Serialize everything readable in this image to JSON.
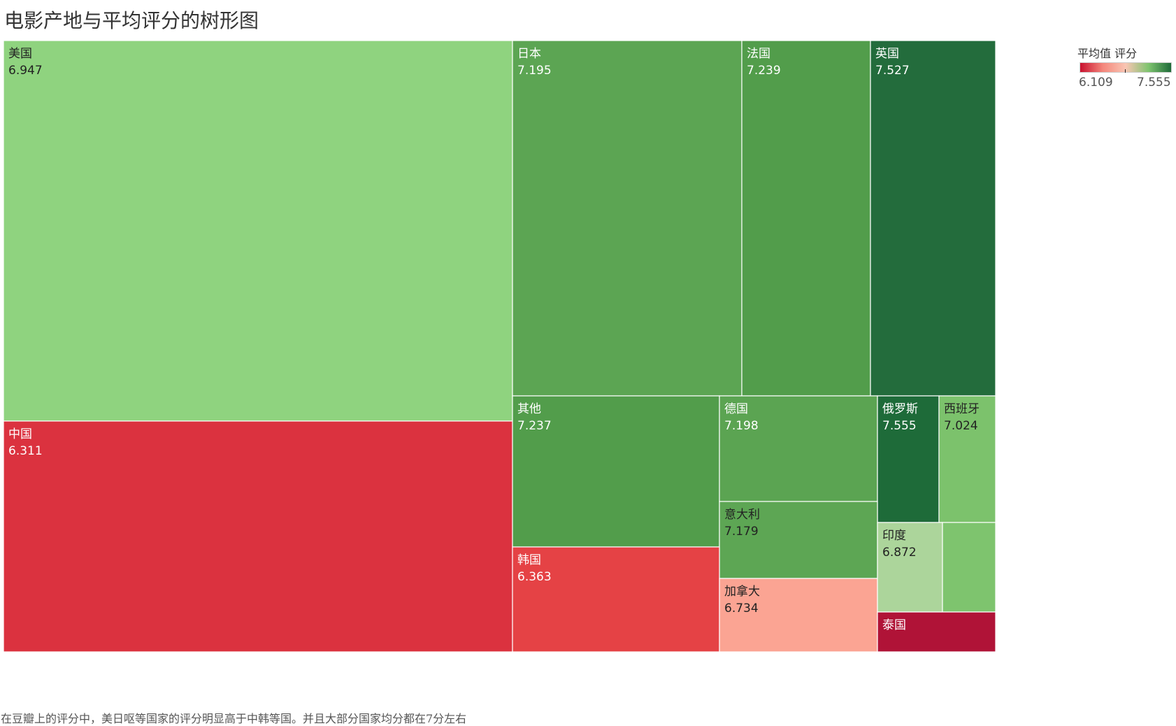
{
  "title": "电影产地与平均评分的树形图",
  "footnote": "在豆瓣上的评分中，美日呕等国家的评分明显高于中韩等国。并且大部分国家均分都在7分左右",
  "legend": {
    "title": "平均值 评分",
    "min": "6.109",
    "max": "7.555",
    "colors": [
      "#c8102e",
      "#f4877c",
      "#f9c5b3",
      "#7fc46f",
      "#1e6b39"
    ]
  },
  "chart_data": {
    "type": "treemap",
    "title": "电影产地与平均评分的树形图",
    "color_measure": "平均值 评分",
    "color_range": [
      6.109,
      7.555
    ],
    "nodes": [
      {
        "name": "美国",
        "value": "6.947",
        "color": "#8fd37f",
        "text_color": "#222222"
      },
      {
        "name": "中国",
        "value": "6.311",
        "color": "#db323f",
        "text_color": "#ffffff"
      },
      {
        "name": "日本",
        "value": "7.195",
        "color": "#5ca553",
        "text_color": "#ffffff"
      },
      {
        "name": "法国",
        "value": "7.239",
        "color": "#529d4b",
        "text_color": "#ffffff"
      },
      {
        "name": "英国",
        "value": "7.527",
        "color": "#236c3c",
        "text_color": "#ffffff"
      },
      {
        "name": "其他",
        "value": "7.237",
        "color": "#529d4b",
        "text_color": "#ffffff"
      },
      {
        "name": "德国",
        "value": "7.198",
        "color": "#5ba452",
        "text_color": "#ffffff"
      },
      {
        "name": "俄罗斯",
        "value": "7.555",
        "color": "#1e6b39",
        "text_color": "#ffffff"
      },
      {
        "name": "西班牙",
        "value": "7.024",
        "color": "#7cc26c",
        "text_color": "#222222"
      },
      {
        "name": "意大利",
        "value": "7.179",
        "color": "#5da654",
        "text_color": "#222222"
      },
      {
        "name": "韩国",
        "value": "6.363",
        "color": "#e54245",
        "text_color": "#ffffff"
      },
      {
        "name": "加拿大",
        "value": "6.734",
        "color": "#fba493",
        "text_color": "#222222"
      },
      {
        "name": "印度",
        "value": "6.872",
        "color": "#acd59b",
        "text_color": "#222222"
      },
      {
        "name": "",
        "value": "",
        "color": "#7ec46e",
        "text_color": "#222222"
      },
      {
        "name": "泰国",
        "value": "",
        "color": "#b01337",
        "text_color": "#ffffff"
      }
    ]
  }
}
